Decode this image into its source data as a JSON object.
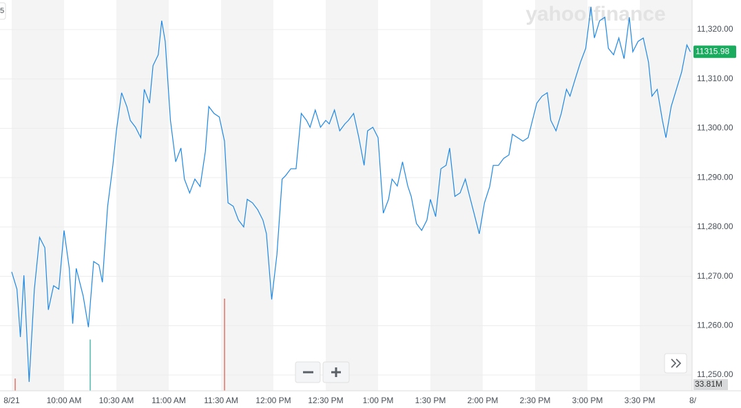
{
  "chart_data": {
    "type": "line",
    "watermark": "yahoo!finance",
    "corner_label": "5",
    "price_label": "11315.98",
    "volume_label": "33.81M",
    "color": "#1e88e5",
    "grid": true,
    "xlim": [
      -6.7,
      390
    ],
    "xticks": [
      {
        "value": 0,
        "label": "8/21"
      },
      {
        "value": 30,
        "label": "10:00 AM"
      },
      {
        "value": 60,
        "label": "10:30 AM"
      },
      {
        "value": 90,
        "label": "11:00 AM"
      },
      {
        "value": 120,
        "label": "11:30 AM"
      },
      {
        "value": 150,
        "label": "12:00 PM"
      },
      {
        "value": 180,
        "label": "12:30 PM"
      },
      {
        "value": 210,
        "label": "1:00 PM"
      },
      {
        "value": 240,
        "label": "1:30 PM"
      },
      {
        "value": 270,
        "label": "2:00 PM"
      },
      {
        "value": 300,
        "label": "2:30 PM"
      },
      {
        "value": 330,
        "label": "3:00 PM"
      },
      {
        "value": 360,
        "label": "3:30 PM"
      },
      {
        "value": 390,
        "label": "8/"
      }
    ],
    "ylim": [
      11246.8,
      11326
    ],
    "yticks": [
      {
        "value": 11250,
        "label": "11,250.00"
      },
      {
        "value": 11260,
        "label": "11,260.00"
      },
      {
        "value": 11270,
        "label": "11,270.00"
      },
      {
        "value": 11280,
        "label": "11,280.00"
      },
      {
        "value": 11290,
        "label": "11,290.00"
      },
      {
        "value": 11300,
        "label": "11,300.00"
      },
      {
        "value": 11310,
        "label": "11,310.00"
      },
      {
        "value": 11320,
        "label": "11,320.00"
      }
    ],
    "x": [
      0,
      3,
      5,
      7,
      10,
      13,
      16,
      19,
      21,
      24,
      27,
      30,
      33,
      35,
      37,
      41,
      44,
      47,
      50,
      52,
      55,
      58,
      60,
      63,
      66,
      68,
      71,
      74,
      76,
      79,
      81,
      84,
      86,
      88,
      91,
      94,
      97,
      99,
      102,
      105,
      108,
      111,
      113,
      116,
      119,
      122,
      124,
      127,
      130,
      133,
      135,
      138,
      141,
      144,
      146,
      149,
      152,
      155,
      157,
      160,
      163,
      166,
      169,
      171,
      174,
      177,
      180,
      182,
      185,
      188,
      191,
      193,
      196,
      199,
      202,
      204,
      207,
      210,
      213,
      216,
      218,
      221,
      224,
      227,
      229,
      232,
      235,
      238,
      240,
      243,
      246,
      249,
      251,
      254,
      257,
      260,
      262,
      265,
      268,
      271,
      274,
      276,
      279,
      282,
      285,
      287,
      290,
      293,
      296,
      298,
      301,
      304,
      307,
      309,
      312,
      315,
      318,
      320,
      323,
      326,
      329,
      332,
      334,
      337,
      340,
      342,
      345,
      348,
      351,
      354,
      356,
      359,
      362,
      365,
      367,
      370,
      373,
      375,
      378,
      381,
      384,
      387,
      389
    ],
    "values": [
      11270.9,
      11267.4,
      11257.7,
      11270.2,
      11248.6,
      11267.4,
      11277.9,
      11275.8,
      11263.2,
      11268.1,
      11267.4,
      11279.3,
      11271.6,
      11260.4,
      11271.6,
      11266.0,
      11259.7,
      11273.0,
      11272.3,
      11268.8,
      11284.2,
      11292.5,
      11299.5,
      11307.2,
      11304.4,
      11301.6,
      11300.2,
      11298.1,
      11307.9,
      11305.1,
      11312.7,
      11314.9,
      11321.8,
      11317.6,
      11301.6,
      11293.2,
      11296.0,
      11289.7,
      11286.9,
      11289.7,
      11288.2,
      11295.3,
      11304.4,
      11303.0,
      11302.3,
      11297.4,
      11284.9,
      11284.2,
      11281.4,
      11280.0,
      11285.6,
      11284.9,
      11283.5,
      11281.4,
      11278.6,
      11265.3,
      11274.4,
      11289.7,
      11290.4,
      11291.8,
      11291.8,
      11303.0,
      11301.6,
      11300.2,
      11303.7,
      11300.2,
      11301.6,
      11300.9,
      11303.7,
      11299.5,
      11300.9,
      11301.6,
      11303.0,
      11298.1,
      11292.5,
      11299.5,
      11300.2,
      11298.1,
      11282.8,
      11285.6,
      11289.7,
      11288.3,
      11293.2,
      11288.3,
      11286.2,
      11280.7,
      11279.3,
      11281.4,
      11285.6,
      11282.1,
      11291.8,
      11292.5,
      11296.0,
      11286.2,
      11286.9,
      11289.7,
      11286.9,
      11282.8,
      11278.6,
      11284.9,
      11288.2,
      11292.5,
      11292.5,
      11293.9,
      11294.6,
      11298.8,
      11298.1,
      11297.4,
      11298.1,
      11300.9,
      11305.1,
      11306.5,
      11307.2,
      11301.6,
      11299.5,
      11303.0,
      11307.9,
      11306.5,
      11310.0,
      11313.4,
      11316.2,
      11324.6,
      11318.3,
      11321.8,
      11322.5,
      11316.2,
      11314.9,
      11318.3,
      11314.1,
      11322.5,
      11315.5,
      11317.6,
      11318.3,
      11313.4,
      11306.5,
      11307.9,
      11301.6,
      11298.1,
      11304.4,
      11307.9,
      11311.4,
      11316.9,
      11315.5
    ],
    "volume": {
      "x": [
        2,
        45,
        122
      ],
      "values": [
        4.5,
        18.8,
        33.8
      ],
      "colors": [
        "#e15241",
        "#26a69a",
        "#e15241"
      ]
    }
  }
}
